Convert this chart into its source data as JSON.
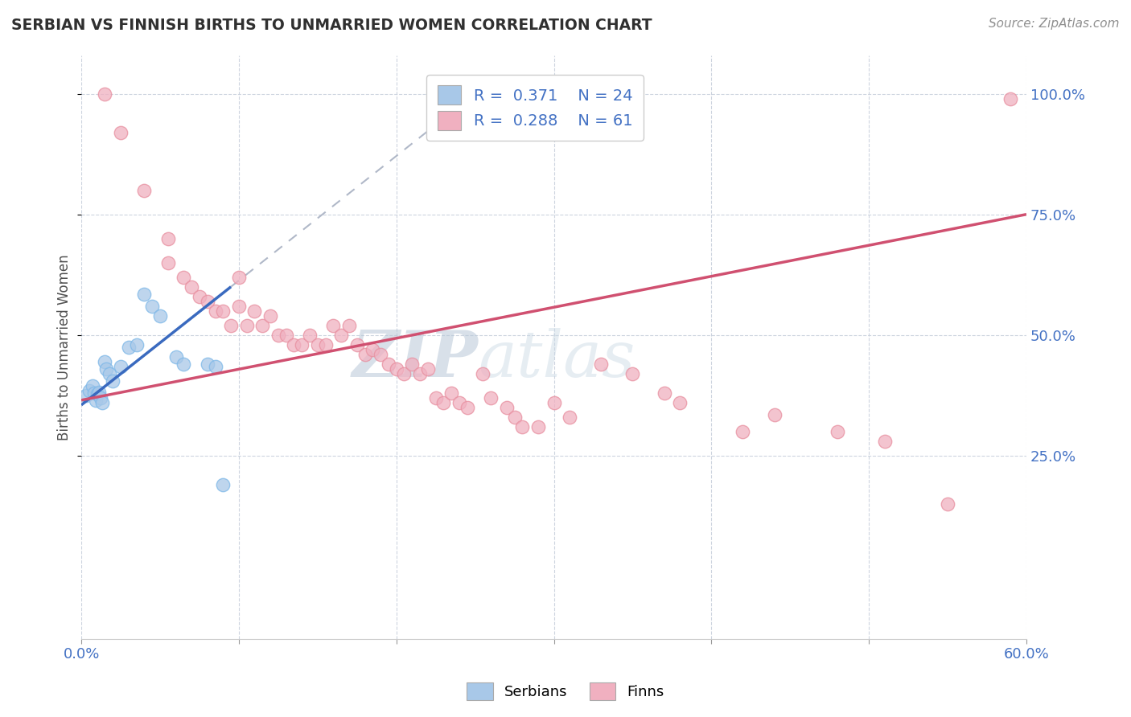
{
  "title": "SERBIAN VS FINNISH BIRTHS TO UNMARRIED WOMEN CORRELATION CHART",
  "source": "Source: ZipAtlas.com",
  "ylabel": "Births to Unmarried Women",
  "xlim": [
    0.0,
    60.0
  ],
  "ylim": [
    -13.0,
    108.0
  ],
  "yticks": [
    25.0,
    50.0,
    75.0,
    100.0
  ],
  "ytick_labels": [
    "25.0%",
    "50.0%",
    "75.0%",
    "100.0%"
  ],
  "xtick_show_left": "0.0%",
  "xtick_show_right": "60.0%",
  "legend_R_serbian": "0.371",
  "legend_N_serbian": "24",
  "legend_R_finn": "0.288",
  "legend_N_finn": "61",
  "serbian_color": "#a8c8e8",
  "serbian_edge_color": "#7eb8e8",
  "finn_color": "#f0b0c0",
  "finn_edge_color": "#e890a0",
  "serbian_line_color": "#3a6abf",
  "finn_line_color": "#d05070",
  "dash_line_color": "#b0b8c8",
  "watermark_zip": "ZIP",
  "watermark_atlas": "atlas",
  "watermark_color": "#c8d8e8",
  "background_color": "#ffffff",
  "grid_color": "#c8d0dc",
  "title_color": "#303030",
  "source_color": "#909090",
  "axis_label_color": "#4472c4",
  "ylabel_color": "#505050",
  "serbian_scatter": [
    [
      0.3,
      37.5
    ],
    [
      0.5,
      38.5
    ],
    [
      0.7,
      39.5
    ],
    [
      0.8,
      38.0
    ],
    [
      0.9,
      36.5
    ],
    [
      1.0,
      37.8
    ],
    [
      1.1,
      38.2
    ],
    [
      1.2,
      37.0
    ],
    [
      1.3,
      36.0
    ],
    [
      1.5,
      44.5
    ],
    [
      1.6,
      43.0
    ],
    [
      1.8,
      42.0
    ],
    [
      2.0,
      40.5
    ],
    [
      2.5,
      43.5
    ],
    [
      3.0,
      47.5
    ],
    [
      3.5,
      48.0
    ],
    [
      4.0,
      58.5
    ],
    [
      4.5,
      56.0
    ],
    [
      5.0,
      54.0
    ],
    [
      6.0,
      45.5
    ],
    [
      6.5,
      44.0
    ],
    [
      8.0,
      44.0
    ],
    [
      8.5,
      43.5
    ],
    [
      9.0,
      19.0
    ]
  ],
  "finn_scatter": [
    [
      1.5,
      100.0
    ],
    [
      2.5,
      92.0
    ],
    [
      4.0,
      80.0
    ],
    [
      5.5,
      70.0
    ],
    [
      5.5,
      65.0
    ],
    [
      6.5,
      62.0
    ],
    [
      7.0,
      60.0
    ],
    [
      7.5,
      58.0
    ],
    [
      8.0,
      57.0
    ],
    [
      8.5,
      55.0
    ],
    [
      9.0,
      55.0
    ],
    [
      9.5,
      52.0
    ],
    [
      10.0,
      62.0
    ],
    [
      10.0,
      56.0
    ],
    [
      10.5,
      52.0
    ],
    [
      11.0,
      55.0
    ],
    [
      11.5,
      52.0
    ],
    [
      12.0,
      54.0
    ],
    [
      12.5,
      50.0
    ],
    [
      13.0,
      50.0
    ],
    [
      13.5,
      48.0
    ],
    [
      14.0,
      48.0
    ],
    [
      14.5,
      50.0
    ],
    [
      15.0,
      48.0
    ],
    [
      15.5,
      48.0
    ],
    [
      16.0,
      52.0
    ],
    [
      16.5,
      50.0
    ],
    [
      17.0,
      52.0
    ],
    [
      17.5,
      48.0
    ],
    [
      18.0,
      46.0
    ],
    [
      18.5,
      47.0
    ],
    [
      19.0,
      46.0
    ],
    [
      19.5,
      44.0
    ],
    [
      20.0,
      43.0
    ],
    [
      20.5,
      42.0
    ],
    [
      21.0,
      44.0
    ],
    [
      21.5,
      42.0
    ],
    [
      22.0,
      43.0
    ],
    [
      22.5,
      37.0
    ],
    [
      23.0,
      36.0
    ],
    [
      23.5,
      38.0
    ],
    [
      24.0,
      36.0
    ],
    [
      24.5,
      35.0
    ],
    [
      25.5,
      42.0
    ],
    [
      26.0,
      37.0
    ],
    [
      27.0,
      35.0
    ],
    [
      27.5,
      33.0
    ],
    [
      28.0,
      31.0
    ],
    [
      29.0,
      31.0
    ],
    [
      30.0,
      36.0
    ],
    [
      31.0,
      33.0
    ],
    [
      33.0,
      44.0
    ],
    [
      35.0,
      42.0
    ],
    [
      37.0,
      38.0
    ],
    [
      38.0,
      36.0
    ],
    [
      42.0,
      30.0
    ],
    [
      44.0,
      33.5
    ],
    [
      48.0,
      30.0
    ],
    [
      51.0,
      28.0
    ],
    [
      55.0,
      15.0
    ],
    [
      59.0,
      99.0
    ]
  ],
  "serbian_trendline_solid": [
    [
      0.0,
      35.5
    ],
    [
      9.5,
      60.0
    ]
  ],
  "serbian_trendline_dash": [
    [
      9.5,
      60.0
    ],
    [
      25.0,
      100.0
    ]
  ],
  "finn_trendline": [
    [
      0.0,
      36.5
    ],
    [
      60.0,
      75.0
    ]
  ]
}
